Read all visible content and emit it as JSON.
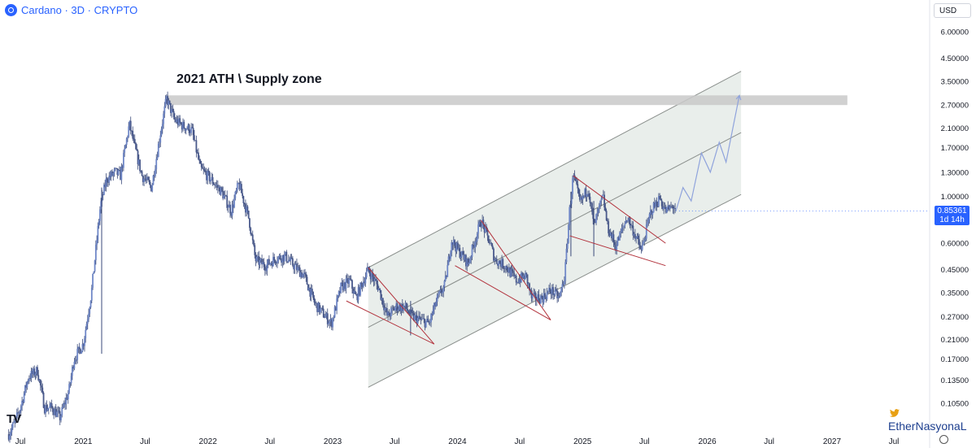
{
  "header": {
    "symbol_label": "Cardano · 3D · CRYPTO",
    "currency": "USD"
  },
  "annotation": {
    "text": "2021 ATH \\ Supply zone"
  },
  "price_tag": {
    "price": "0.85361",
    "countdown": "1d 14h"
  },
  "watermark": "EtherNasyonaL",
  "logo": "TV",
  "colors": {
    "candles": "#7088c8",
    "accent": "#2962ff",
    "channel_fill": "#e2e8e4",
    "channel_lines": "#8a8f8c",
    "wedge_lines": "#b2323c",
    "projection": "#8fa3dc",
    "supply_zone": "#c9c9c9"
  },
  "chart_data": {
    "type": "candlestick",
    "scale": "log",
    "ylim": [
      0.09,
      7.5
    ],
    "y_ticks": [
      {
        "value": 6.0,
        "label": "6.00000"
      },
      {
        "value": 4.5,
        "label": "4.50000"
      },
      {
        "value": 3.5,
        "label": "3.50000"
      },
      {
        "value": 2.7,
        "label": "2.70000"
      },
      {
        "value": 2.1,
        "label": "2.10000"
      },
      {
        "value": 1.7,
        "label": "1.70000"
      },
      {
        "value": 1.3,
        "label": "1.30000"
      },
      {
        "value": 1.0,
        "label": "1.00000"
      },
      {
        "value": 0.6,
        "label": "0.60000"
      },
      {
        "value": 0.45,
        "label": "0.45000"
      },
      {
        "value": 0.35,
        "label": "0.35000"
      },
      {
        "value": 0.27,
        "label": "0.27000"
      },
      {
        "value": 0.21,
        "label": "0.21000"
      },
      {
        "value": 0.17,
        "label": "0.17000"
      },
      {
        "value": 0.135,
        "label": "0.13500"
      },
      {
        "value": 0.105,
        "label": "0.10500"
      }
    ],
    "x_ticks": [
      {
        "date": "2020-07-01",
        "label": "Jul"
      },
      {
        "date": "2021-01-01",
        "label": "2021"
      },
      {
        "date": "2021-07-01",
        "label": "Jul"
      },
      {
        "date": "2022-01-01",
        "label": "2022"
      },
      {
        "date": "2022-07-01",
        "label": "Jul"
      },
      {
        "date": "2023-01-01",
        "label": "2023"
      },
      {
        "date": "2023-07-01",
        "label": "Jul"
      },
      {
        "date": "2024-01-01",
        "label": "2024"
      },
      {
        "date": "2024-07-01",
        "label": "Jul"
      },
      {
        "date": "2025-01-01",
        "label": "2025"
      },
      {
        "date": "2025-07-01",
        "label": "Jul"
      },
      {
        "date": "2026-01-01",
        "label": "2026"
      },
      {
        "date": "2026-07-01",
        "label": "Jul"
      },
      {
        "date": "2027-01-01",
        "label": "2027"
      },
      {
        "date": "2027-07-01",
        "label": "Jul"
      }
    ],
    "price_path": [
      [
        "2020-05-28",
        0.075
      ],
      [
        "2020-06-15",
        0.085
      ],
      [
        "2020-07-01",
        0.1
      ],
      [
        "2020-07-25",
        0.14
      ],
      [
        "2020-08-20",
        0.15
      ],
      [
        "2020-09-10",
        0.1
      ],
      [
        "2020-10-01",
        0.1
      ],
      [
        "2020-10-25",
        0.09
      ],
      [
        "2020-11-20",
        0.12
      ],
      [
        "2020-12-05",
        0.17
      ],
      [
        "2021-01-01",
        0.2
      ],
      [
        "2021-01-25",
        0.35
      ],
      [
        "2021-02-20",
        0.9
      ],
      [
        "2021-03-10",
        1.2
      ],
      [
        "2021-04-05",
        1.3
      ],
      [
        "2021-04-20",
        1.25
      ],
      [
        "2021-05-16",
        2.2
      ],
      [
        "2021-06-01",
        1.7
      ],
      [
        "2021-06-22",
        1.25
      ],
      [
        "2021-07-20",
        1.1
      ],
      [
        "2021-08-15",
        2.0
      ],
      [
        "2021-09-02",
        2.9
      ],
      [
        "2021-09-25",
        2.3
      ],
      [
        "2021-10-20",
        2.15
      ],
      [
        "2021-11-15",
        2.05
      ],
      [
        "2021-12-10",
        1.35
      ],
      [
        "2022-01-10",
        1.2
      ],
      [
        "2022-02-10",
        1.05
      ],
      [
        "2022-03-10",
        0.85
      ],
      [
        "2022-04-01",
        1.15
      ],
      [
        "2022-05-01",
        0.78
      ],
      [
        "2022-05-20",
        0.5
      ],
      [
        "2022-06-18",
        0.47
      ],
      [
        "2022-07-20",
        0.51
      ],
      [
        "2022-08-15",
        0.52
      ],
      [
        "2022-09-15",
        0.46
      ],
      [
        "2022-10-10",
        0.42
      ],
      [
        "2022-11-10",
        0.31
      ],
      [
        "2022-12-28",
        0.25
      ],
      [
        "2023-01-25",
        0.37
      ],
      [
        "2023-02-20",
        0.4
      ],
      [
        "2023-03-10",
        0.33
      ],
      [
        "2023-04-15",
        0.45
      ],
      [
        "2023-05-15",
        0.37
      ],
      [
        "2023-06-10",
        0.27
      ],
      [
        "2023-07-05",
        0.3
      ],
      [
        "2023-08-01",
        0.3
      ],
      [
        "2023-08-20",
        0.27
      ],
      [
        "2023-10-10",
        0.25
      ],
      [
        "2023-11-01",
        0.32
      ],
      [
        "2023-11-25",
        0.38
      ],
      [
        "2023-12-15",
        0.62
      ],
      [
        "2024-01-05",
        0.55
      ],
      [
        "2024-02-01",
        0.48
      ],
      [
        "2024-03-10",
        0.77
      ],
      [
        "2024-04-05",
        0.6
      ],
      [
        "2024-04-20",
        0.5
      ],
      [
        "2024-05-20",
        0.47
      ],
      [
        "2024-06-20",
        0.4
      ],
      [
        "2024-07-20",
        0.42
      ],
      [
        "2024-08-05",
        0.33
      ],
      [
        "2024-09-05",
        0.33
      ],
      [
        "2024-09-30",
        0.36
      ],
      [
        "2024-10-25",
        0.33
      ],
      [
        "2024-11-10",
        0.42
      ],
      [
        "2024-11-25",
        0.9
      ],
      [
        "2024-12-05",
        1.25
      ],
      [
        "2024-12-25",
        0.93
      ],
      [
        "2025-01-18",
        1.1
      ],
      [
        "2025-02-03",
        0.72
      ],
      [
        "2025-03-02",
        1.0
      ],
      [
        "2025-03-15",
        0.72
      ],
      [
        "2025-04-08",
        0.58
      ],
      [
        "2025-05-12",
        0.8
      ],
      [
        "2025-06-10",
        0.62
      ],
      [
        "2025-06-22",
        0.55
      ],
      [
        "2025-07-20",
        0.85
      ],
      [
        "2025-08-15",
        0.98
      ],
      [
        "2025-09-01",
        0.85
      ],
      [
        "2025-09-25",
        0.9
      ],
      [
        "2025-10-01",
        0.85361
      ]
    ],
    "supply_zone": {
      "from": "2021-09-02",
      "to": "2027-02-15",
      "low": 2.7,
      "high": 3.0
    },
    "channel": {
      "upper": [
        [
          "2023-04-15",
          0.46
        ],
        [
          "2026-04-10",
          3.9
        ]
      ],
      "middle": [
        [
          "2023-04-15",
          0.24
        ],
        [
          "2026-04-10",
          2.0
        ]
      ],
      "lower": [
        [
          "2023-04-15",
          0.125
        ],
        [
          "2026-04-10",
          1.02
        ]
      ]
    },
    "wedges": [
      {
        "upper": [
          [
            "2023-04-15",
            0.46
          ],
          [
            "2023-10-25",
            0.2
          ]
        ],
        "lower": [
          [
            "2023-02-10",
            0.32
          ],
          [
            "2023-10-25",
            0.2
          ]
        ]
      },
      {
        "upper": [
          [
            "2024-03-10",
            0.77
          ],
          [
            "2024-09-30",
            0.26
          ]
        ],
        "lower": [
          [
            "2023-12-25",
            0.47
          ],
          [
            "2024-09-30",
            0.26
          ]
        ]
      },
      {
        "upper": [
          [
            "2024-12-05",
            1.25
          ],
          [
            "2025-09-01",
            0.6
          ]
        ],
        "lower": [
          [
            "2024-11-25",
            0.65
          ],
          [
            "2025-09-01",
            0.47
          ]
        ]
      }
    ],
    "projection": [
      [
        "2025-10-01",
        0.85
      ],
      [
        "2025-10-22",
        1.1
      ],
      [
        "2025-11-15",
        0.95
      ],
      [
        "2025-12-15",
        1.6
      ],
      [
        "2026-01-10",
        1.3
      ],
      [
        "2026-02-05",
        1.8
      ],
      [
        "2026-02-25",
        1.45
      ],
      [
        "2026-04-05",
        3.0
      ]
    ]
  }
}
